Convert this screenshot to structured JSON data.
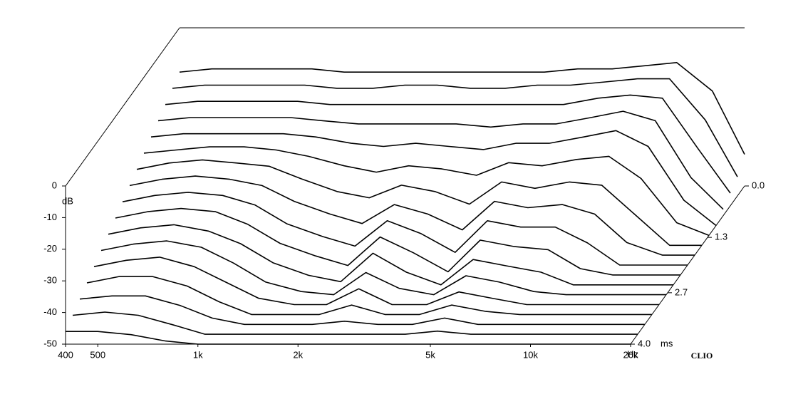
{
  "chart_data": {
    "type": "waterfall",
    "x": [
      400,
      500,
      630,
      800,
      1000,
      1250,
      1600,
      2000,
      2500,
      3150,
      4000,
      5000,
      6300,
      8000,
      10000,
      12500,
      16000,
      20000
    ],
    "xlim": [
      400,
      20000
    ],
    "xticks": [
      400,
      500,
      {
        "value": 1000,
        "label": "1k"
      },
      {
        "value": 2000,
        "label": "2k"
      },
      {
        "value": 5000,
        "label": "5k"
      },
      {
        "value": 10000,
        "label": "10k"
      },
      {
        "value": 20000,
        "label": "20k"
      }
    ],
    "x_unit": "Hz",
    "log_x": true,
    "ylim": [
      -50,
      0
    ],
    "yticks": [
      0,
      -10,
      -20,
      -30,
      -40,
      -50
    ],
    "y_unit": "dB",
    "zlim": [
      0,
      4
    ],
    "zticks": [
      {
        "value": 0,
        "label": "0.0"
      },
      1.3,
      2.7,
      {
        "value": 4,
        "label": "4.0"
      }
    ],
    "z_unit": "ms",
    "brand": "CLIO",
    "color": "#000000",
    "slices": [
      {
        "t": 0.0,
        "values": [
          -14,
          -13,
          -13,
          -13,
          -13,
          -14,
          -14,
          -14,
          -14,
          -14,
          -14,
          -14,
          -13,
          -13,
          -12,
          -11,
          -20,
          -40
        ]
      },
      {
        "t": 0.25,
        "values": [
          -16,
          -15,
          -15,
          -15,
          -15,
          -16,
          -16,
          -15,
          -15,
          -16,
          -16,
          -15,
          -15,
          -14,
          -13,
          -13,
          -26,
          -44
        ]
      },
      {
        "t": 0.5,
        "values": [
          -18,
          -17,
          -17,
          -17,
          -17,
          -18,
          -18,
          -18,
          -18,
          -18,
          -18,
          -18,
          -18,
          -16,
          -15,
          -16,
          -32,
          -46
        ]
      },
      {
        "t": 0.75,
        "values": [
          -20,
          -19,
          -19,
          -19,
          -19,
          -20,
          -21,
          -21,
          -21,
          -21,
          -22,
          -21,
          -21,
          -19,
          -17,
          -20,
          -38,
          -48
        ]
      },
      {
        "t": 1.0,
        "values": [
          -22,
          -21,
          -21,
          -21,
          -21,
          -22,
          -24,
          -25,
          -24,
          -25,
          -26,
          -24,
          -24,
          -22,
          -20,
          -25,
          -42,
          -50
        ]
      },
      {
        "t": 1.25,
        "values": [
          -24,
          -23,
          -22,
          -22,
          -23,
          -25,
          -28,
          -30,
          -28,
          -29,
          -31,
          -27,
          -28,
          -26,
          -25,
          -32,
          -46,
          -50
        ]
      },
      {
        "t": 1.5,
        "values": [
          -26,
          -24,
          -23,
          -24,
          -25,
          -29,
          -33,
          -35,
          -31,
          -33,
          -37,
          -30,
          -32,
          -30,
          -31,
          -40,
          -50,
          -50
        ]
      },
      {
        "t": 1.75,
        "values": [
          -28,
          -26,
          -25,
          -26,
          -28,
          -33,
          -37,
          -40,
          -34,
          -37,
          -42,
          -33,
          -35,
          -34,
          -37,
          -46,
          -50,
          -50
        ]
      },
      {
        "t": 2.0,
        "values": [
          -30,
          -28,
          -27,
          -28,
          -31,
          -37,
          -41,
          -44,
          -36,
          -40,
          -46,
          -36,
          -38,
          -38,
          -43,
          -50,
          -50,
          -50
        ]
      },
      {
        "t": 2.25,
        "values": [
          -32,
          -30,
          -29,
          -30,
          -34,
          -40,
          -44,
          -47,
          -38,
          -43,
          -49,
          -39,
          -41,
          -42,
          -48,
          -50,
          -50,
          -50
        ]
      },
      {
        "t": 2.5,
        "values": [
          -34,
          -32,
          -31,
          -33,
          -37,
          -43,
          -47,
          -49,
          -40,
          -46,
          -50,
          -42,
          -44,
          -46,
          -50,
          -50,
          -50,
          -50
        ]
      },
      {
        "t": 2.75,
        "values": [
          -36,
          -34,
          -33,
          -35,
          -40,
          -46,
          -49,
          -50,
          -43,
          -48,
          -50,
          -44,
          -46,
          -49,
          -50,
          -50,
          -50,
          -50
        ]
      },
      {
        "t": 3.0,
        "values": [
          -38,
          -36,
          -35,
          -38,
          -43,
          -48,
          -50,
          -50,
          -45,
          -50,
          -50,
          -46,
          -48,
          -50,
          -50,
          -50,
          -50,
          -50
        ]
      },
      {
        "t": 3.25,
        "values": [
          -40,
          -38,
          -38,
          -41,
          -46,
          -50,
          -50,
          -50,
          -47,
          -50,
          -50,
          -47,
          -49,
          -50,
          -50,
          -50,
          -50,
          -50
        ]
      },
      {
        "t": 3.5,
        "values": [
          -42,
          -41,
          -41,
          -44,
          -48,
          -50,
          -50,
          -50,
          -49,
          -50,
          -50,
          -48,
          -50,
          -50,
          -50,
          -50,
          -50,
          -50
        ]
      },
      {
        "t": 3.75,
        "values": [
          -44,
          -43,
          -44,
          -47,
          -50,
          -50,
          -50,
          -50,
          -50,
          -50,
          -50,
          -49,
          -50,
          -50,
          -50,
          -50,
          -50,
          -50
        ]
      },
      {
        "t": 4.0,
        "values": [
          -46,
          -46,
          -47,
          -49,
          -50,
          -50,
          -50,
          -50,
          -50,
          -50,
          -50,
          -50,
          -50,
          -50,
          -50,
          -50,
          -50,
          -50
        ]
      }
    ]
  }
}
